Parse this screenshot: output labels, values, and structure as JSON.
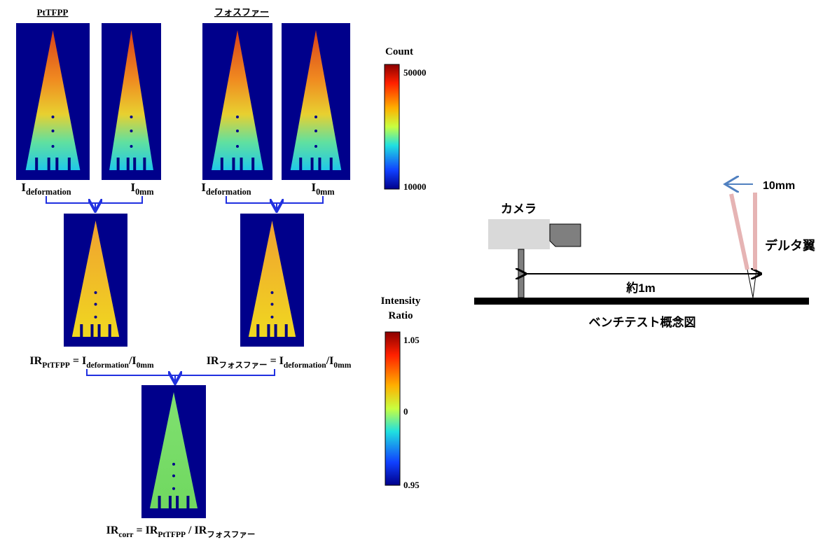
{
  "titles": {
    "left": "PtTFPP",
    "right": "フォスファー"
  },
  "image_labels": [
    [
      {
        "text": "I"
      },
      {
        "sub": "deformation"
      }
    ],
    [
      {
        "text": "I"
      },
      {
        "sub": "0mm"
      }
    ],
    [
      {
        "text": "I"
      },
      {
        "sub": "deformation"
      }
    ],
    [
      {
        "text": "I"
      },
      {
        "sub": "0mm"
      }
    ]
  ],
  "formulas": [
    [
      {
        "text": "IR"
      },
      {
        "sub": "PtTFPP"
      },
      {
        "text": " = I"
      },
      {
        "sub": "deformation"
      },
      {
        "text": "/I"
      },
      {
        "sub": "0mm"
      }
    ],
    [
      {
        "text": "IR"
      },
      {
        "sub": "フォスファー"
      },
      {
        "text": " = I"
      },
      {
        "sub": "deformation"
      },
      {
        "text": "/I"
      },
      {
        "sub": "0mm"
      }
    ],
    [
      {
        "text": "IR"
      },
      {
        "sub": "corr"
      },
      {
        "text": " = IR"
      },
      {
        "sub": "PtTFPP"
      },
      {
        "text": " / IR"
      },
      {
        "sub": "フォスファー"
      }
    ]
  ],
  "colorbars": {
    "count": {
      "title": "Count",
      "max": "50000",
      "min": "10000"
    },
    "ratio": {
      "title": [
        "Intensity",
        "Ratio"
      ],
      "max": "1.05",
      "mid": "0",
      "min": "0.95"
    }
  },
  "bench": {
    "camera": "カメラ",
    "displacement": "10mm",
    "wing": "デルタ翼",
    "distance": "約1m",
    "caption": "ベンチテスト概念図"
  }
}
